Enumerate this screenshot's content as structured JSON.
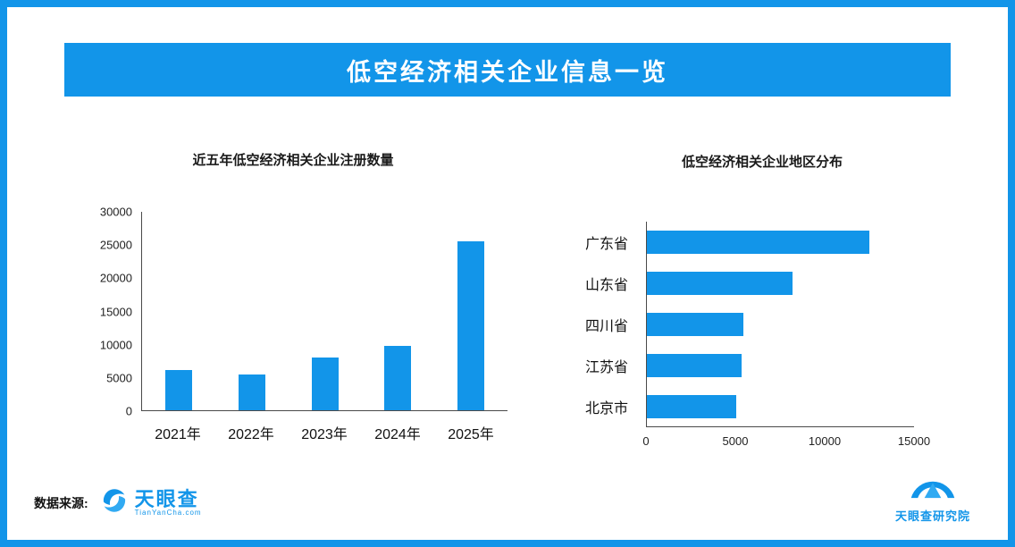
{
  "colors": {
    "accent": "#1295e9",
    "axis": "#4a4a4a"
  },
  "header": {
    "title": "低空经济相关企业信息一览"
  },
  "footer": {
    "source_label": "数据来源:",
    "tianyancha_logo": {
      "name": "天眼查",
      "domain": "TianYanCha.com"
    },
    "institute_logo": {
      "name": "天眼查研究院"
    }
  },
  "chart_data": [
    {
      "type": "bar",
      "title": "近五年低空经济相关企业注册数量",
      "categories": [
        "2021年",
        "2022年",
        "2023年",
        "2024年",
        "2025年"
      ],
      "values": [
        6100,
        5400,
        8000,
        9700,
        25600
      ],
      "ylim": [
        0,
        30000
      ],
      "yticks": [
        0,
        5000,
        10000,
        15000,
        20000,
        25000,
        30000
      ],
      "xlabel": "",
      "ylabel": "",
      "grid": false,
      "legend": false,
      "bar_color": "#1295e9"
    },
    {
      "type": "bar",
      "orientation": "horizontal",
      "title": "低空经济相关企业地区分布",
      "categories": [
        "广东省",
        "山东省",
        "四川省",
        "江苏省",
        "北京市"
      ],
      "values": [
        12500,
        8200,
        5400,
        5300,
        5000
      ],
      "xlim": [
        0,
        15000
      ],
      "xticks": [
        0,
        5000,
        10000,
        15000
      ],
      "xlabel": "",
      "ylabel": "",
      "grid": false,
      "legend": false,
      "bar_color": "#1295e9"
    }
  ]
}
